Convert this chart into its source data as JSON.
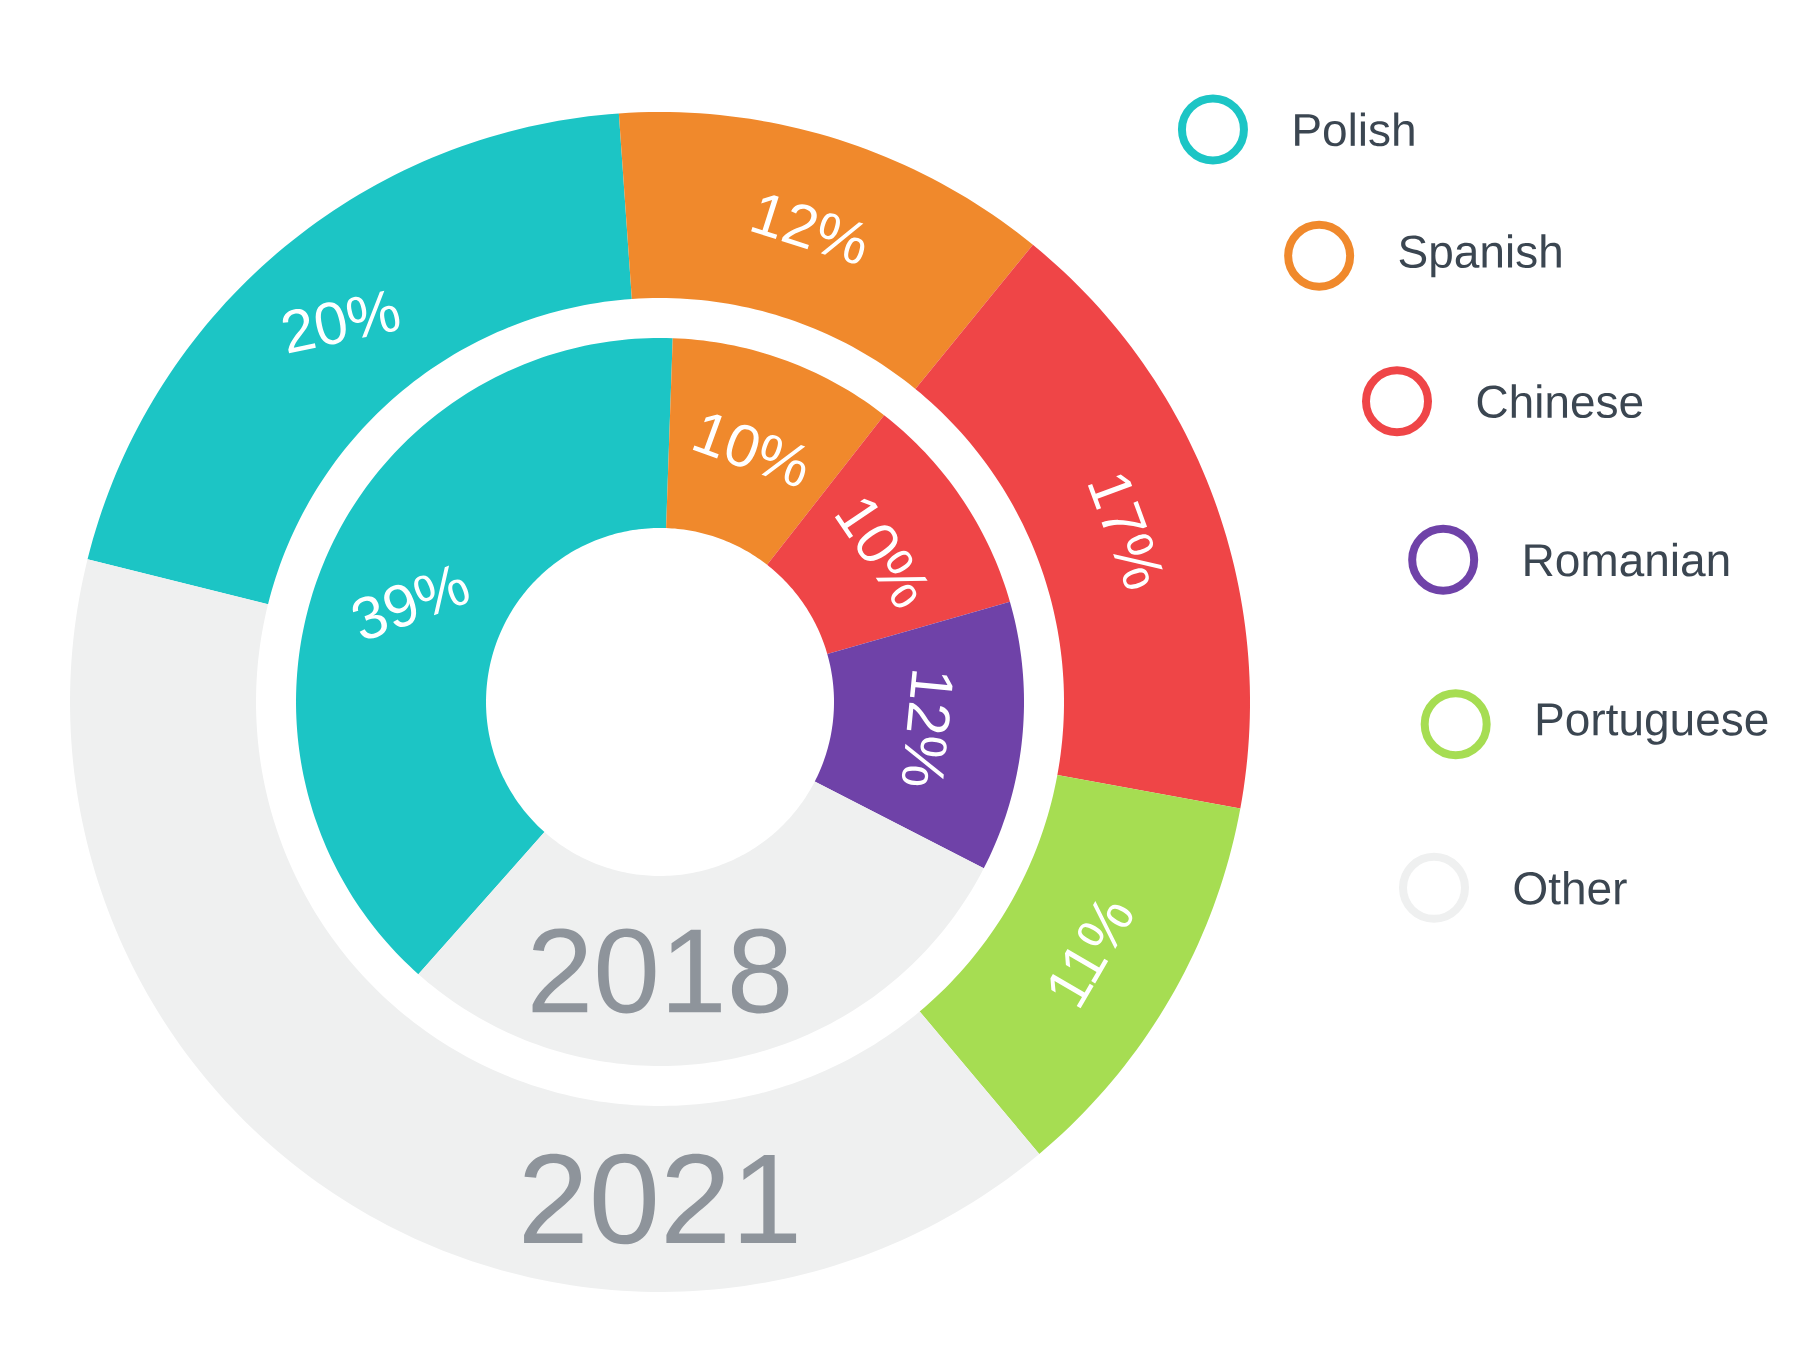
{
  "chart_data": {
    "type": "donut",
    "categories": [
      "Polish",
      "Spanish",
      "Chinese",
      "Romanian",
      "Portuguese",
      "Other"
    ],
    "colors": [
      "#1cc5c5",
      "#f0892c",
      "#ef4547",
      "#6f42a8",
      "#a6dd52",
      "#eff0f0"
    ],
    "series": [
      {
        "name": "2018",
        "values": [
          39,
          10,
          10,
          12,
          null,
          29
        ],
        "value_labels": [
          "39%",
          "10%",
          "10%",
          "12%",
          null,
          null
        ]
      },
      {
        "name": "2021",
        "values": [
          20,
          12,
          17,
          null,
          11,
          40
        ],
        "value_labels": [
          "20%",
          "12%",
          "17%",
          null,
          "11%",
          null
        ]
      }
    ],
    "legend": "right"
  }
}
